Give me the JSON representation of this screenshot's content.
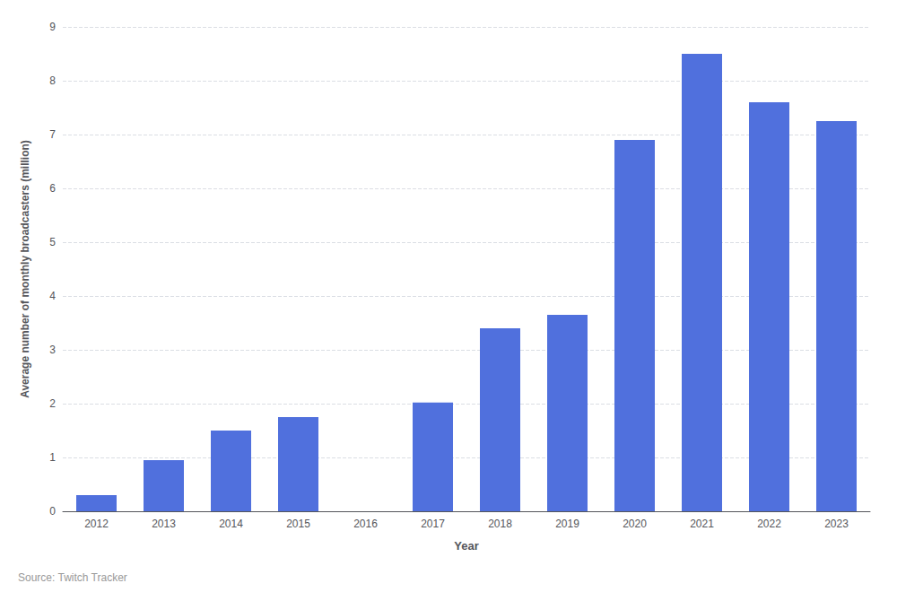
{
  "chart_data": {
    "type": "bar",
    "x_label": "Year",
    "y_label": "Average number of monthly broadcasters (million)",
    "annotations": [
      "Source: Twitch Tracker"
    ],
    "categories": [
      "2012",
      "2013",
      "2014",
      "2015",
      "2016",
      "2017",
      "2018",
      "2019",
      "2020",
      "2021",
      "2022",
      "2023"
    ],
    "values": [
      0.3,
      0.95,
      1.5,
      1.75,
      0.0,
      2.02,
      3.4,
      3.65,
      6.9,
      8.5,
      7.6,
      7.25
    ],
    "ylim": [
      0,
      9
    ],
    "yticks": [
      0,
      1,
      2,
      3,
      4,
      5,
      6,
      7,
      8,
      9
    ],
    "grid": true
  }
}
